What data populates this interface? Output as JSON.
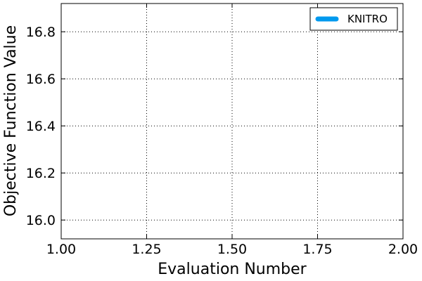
{
  "chart_data": {
    "type": "line",
    "xlabel": "Evaluation Number",
    "ylabel": "Objective Function Value",
    "xlim": [
      1.0,
      2.0
    ],
    "ylim": [
      15.92,
      16.92
    ],
    "xticks": [
      "1.00",
      "1.25",
      "1.50",
      "1.75",
      "2.00"
    ],
    "xtick_values": [
      1.0,
      1.25,
      1.5,
      1.75,
      2.0
    ],
    "yticks": [
      "16.0",
      "16.2",
      "16.4",
      "16.6",
      "16.8"
    ],
    "ytick_values": [
      16.0,
      16.2,
      16.4,
      16.6,
      16.8
    ],
    "grid": true,
    "legend_position": "top-right",
    "series": [
      {
        "name": "KNITRO",
        "color": "#0099ee",
        "x": [],
        "y": []
      }
    ]
  }
}
